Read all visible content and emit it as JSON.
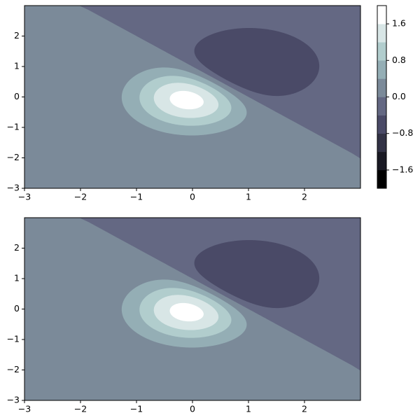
{
  "chart_data": [
    {
      "type": "contourf",
      "field": {
        "components": [
          {
            "center": [
              0,
              0
            ],
            "amplitude": 2
          },
          {
            "center": [
              1,
              1
            ],
            "amplitude": -2
          }
        ]
      },
      "levels": [
        -2,
        -1.6,
        -1.2,
        -0.8,
        -0.4,
        0,
        0.4,
        0.8,
        1.2,
        1.6,
        2
      ],
      "colors": [
        "#000000",
        "#191923",
        "#323245",
        "#4a4a67",
        "#646883",
        "#7b8a99",
        "#94aeb5",
        "#b1cdcd",
        "#d8e6e6",
        "#ffffff"
      ],
      "xlim": [
        -3,
        3
      ],
      "ylim": [
        -3,
        3
      ],
      "xticks": [
        {
          "value": -3,
          "label": "−3"
        },
        {
          "value": -2,
          "label": "−2"
        },
        {
          "value": -1,
          "label": "−1"
        },
        0,
        1,
        2
      ],
      "yticks": [
        {
          "value": -3,
          "label": "−3"
        },
        {
          "value": -2,
          "label": "−2"
        },
        {
          "value": -1,
          "label": "−1"
        },
        0,
        1,
        2
      ],
      "colorbar": true,
      "colorbar_ticks": [
        {
          "value": -1.6,
          "label": "−1.6"
        },
        {
          "value": -0.8,
          "label": "−0.8"
        },
        {
          "value": 0,
          "label": "0.0"
        },
        {
          "value": 0.8,
          "label": "0.8"
        },
        {
          "value": 1.6,
          "label": "1.6"
        }
      ]
    },
    {
      "type": "contourf",
      "field": {
        "components": [
          {
            "center": [
              0,
              0
            ],
            "amplitude": 2
          },
          {
            "center": [
              1,
              1
            ],
            "amplitude": -2
          }
        ]
      },
      "levels": [
        -2,
        -1.6,
        -1.2,
        -0.8,
        -0.4,
        0,
        0.4,
        0.8,
        1.2,
        1.6,
        2
      ],
      "colors": [
        "#000000",
        "#191923",
        "#323245",
        "#4a4a67",
        "#646883",
        "#7b8a99",
        "#94aeb5",
        "#b1cdcd",
        "#d8e6e6",
        "#ffffff"
      ],
      "xlim": [
        -3,
        3
      ],
      "ylim": [
        -3,
        3
      ],
      "xticks": [
        {
          "value": -3,
          "label": "−3"
        },
        {
          "value": -2,
          "label": "−2"
        },
        {
          "value": -1,
          "label": "−1"
        },
        0,
        1,
        2
      ],
      "yticks": [
        {
          "value": -3,
          "label": "−3"
        },
        {
          "value": -2,
          "label": "−2"
        },
        {
          "value": -1,
          "label": "−1"
        },
        0,
        1,
        2
      ],
      "colorbar": false
    }
  ]
}
